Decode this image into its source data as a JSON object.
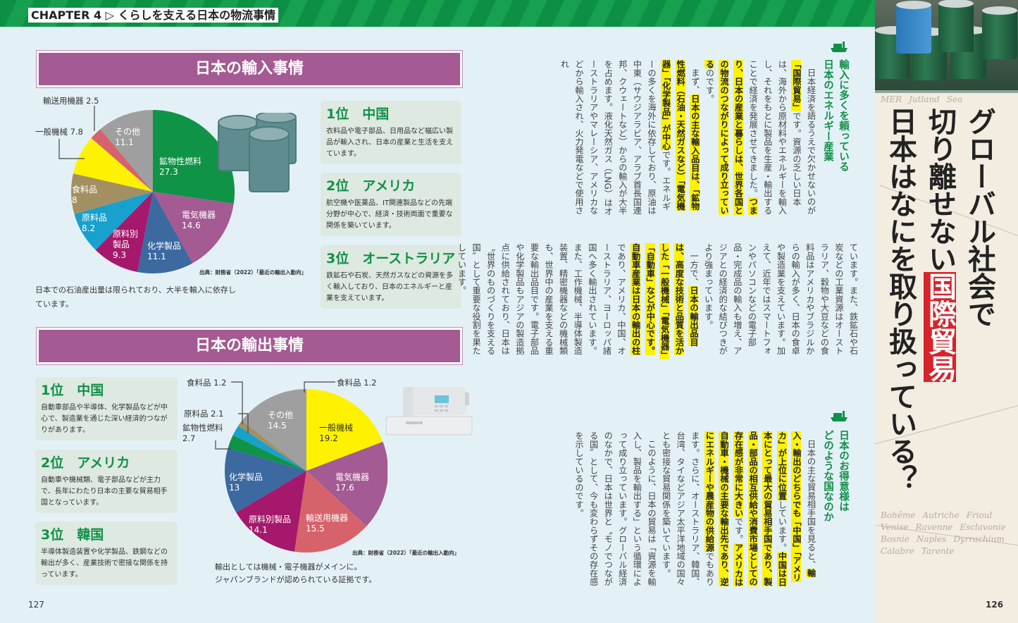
{
  "header": {
    "chapter": "CHAPTER 4 ▷ くらしを支える日本の物流事情"
  },
  "left_page": {
    "import_section": {
      "title": "日本の輸入事情",
      "source": "出典：財務省（2022）「最近の輸出入動向」",
      "caption": "日本での石油産出量は限られており、大半を輸入に依存しています。",
      "ranks": [
        {
          "title": "1位　中国",
          "body": "衣料品や電子部品、日用品など幅広い製品が輸入され、日本の産業と生活を支えています。"
        },
        {
          "title": "2位　アメリカ",
          "body": "航空機や医薬品、IT関連製品などの先端分野が中心で、経済・技術両面で重要な関係を築いています。"
        },
        {
          "title": "3位　オーストラリア",
          "body": "鉄鉱石や石炭、天然ガスなどの資源を多く輸入しており、日本のエネルギーと産業を支えています。"
        }
      ]
    },
    "export_section": {
      "title": "日本の輸出事情",
      "source": "出典：財務省（2022）「最近の輸出入動向」",
      "caption_lines": [
        "輸出としては機械・電子機器がメインに。",
        "ジャパンブランドが認められている証拠です。"
      ],
      "ranks": [
        {
          "title": "1位　中国",
          "body": "自動車部品や半導体、化学製品などが中心で、製造業を通じた深い経済的つながりがあります。"
        },
        {
          "title": "2位　アメリカ",
          "body": "自動車や機械類、電子部品などが主力で、長年にわたり日本の主要な貿易相手国となっています。"
        },
        {
          "title": "3位　韓国",
          "body": "半導体製造装置や化学製品、鉄鋼などの輸出が多く、産業技術で密接な関係を持っています。"
        }
      ]
    },
    "page_number": "127"
  },
  "chart_data": [
    {
      "type": "pie",
      "title": "日本の輸入事情",
      "start": "12 o'clock clockwise",
      "categories": [
        "鉱物性燃料",
        "電気機器",
        "化学製品",
        "原料別製品",
        "原料品",
        "食料品",
        "一般機械",
        "輸送用機器",
        "その他"
      ],
      "values": [
        27.3,
        14.6,
        11.1,
        9.3,
        8.2,
        8,
        7.8,
        2.5,
        11.1
      ],
      "value_labels": [
        "27.3",
        "14.6",
        "11.1",
        "9.3",
        "8.2",
        "8",
        "7.8",
        "2.5",
        "11.1"
      ],
      "inside_labels": [
        "鉱物性燃料",
        "電気機器",
        "化学製品",
        "原料別\n製品",
        "原料品",
        "食料品",
        "",
        "",
        "その他"
      ],
      "outside_labels": [
        "一般機械 7.8",
        "輸送用機器 2.5"
      ],
      "colors": [
        "#0f9346",
        "#a45a92",
        "#3b69a0",
        "#a6186b",
        "#17a1cc",
        "#a39062",
        "#fff200",
        "#d6636b",
        "#9f9f9f"
      ]
    },
    {
      "type": "pie",
      "title": "日本の輸出事情",
      "start": "12 o'clock clockwise",
      "categories": [
        "一般機械",
        "電気機器",
        "輸送用機器",
        "原料別製品",
        "化学製品",
        "鉱物性燃料",
        "原料品",
        "食料品",
        "その他"
      ],
      "values": [
        19.2,
        17.6,
        15.5,
        14.1,
        13,
        2.7,
        2.1,
        1.2,
        14.5
      ],
      "value_labels": [
        "19.2",
        "17.6",
        "15.5",
        "14.1",
        "13",
        "2.7",
        "2.1",
        "1.2",
        "14.5"
      ],
      "inside_labels": [
        "一般機械",
        "電気機器",
        "輸送用機器",
        "原料別製品",
        "化学製品",
        "",
        "",
        "",
        "その他"
      ],
      "outside_labels": [
        "食料品 1.2",
        "原料品 2.1",
        "鉱物性燃料",
        "2.7",
        "食料品 1.2"
      ],
      "colors": [
        "#fff200",
        "#a45a92",
        "#d6636b",
        "#a6186b",
        "#3b69a0",
        "#0f9346",
        "#17a1cc",
        "#a39062",
        "#9f9f9f"
      ]
    }
  ],
  "article": {
    "heading1": [
      "輸入に多くを頼っている",
      "日本のエネルギー産業"
    ],
    "heading2": [
      "日本のお得意様は",
      "どのような国なのか"
    ],
    "tiers": [
      [
        {
          "ind": true,
          "segs": [
            {
              "t": "日本経済を語るうえで欠かせないのが"
            },
            {
              "t": "「国際貿易」",
              "hl": true
            },
            {
              "t": "です。資源の乏しい日本は、海外から原材料やエネルギーを輸入し、それをもとに製品を生産・輸出することで経済を発展させてきました。"
            },
            {
              "t": "つまり、日本の産業と暮らしは、世界各国との物流のつながりによって成り立っている",
              "hl": true
            },
            {
              "t": "のです。"
            }
          ]
        },
        {
          "ind": true,
          "segs": [
            {
              "t": "まず、"
            },
            {
              "t": "日本の主な輸入品目は、「鉱物性燃料（石油・天然ガスなど）「電気機器」「化学製品」が中心",
              "hl": true
            },
            {
              "t": "です。エネルギーの多くを海外に依存しており、原油は中東（サウジアラビア、アラブ首長国連邦、クウェートなど）からの輸入が大半を占めます。液化天然ガス（LNG）はオーストラリアやマレーシア、アメリカなどから輸入され、火力発電などで使用され"
            }
          ]
        }
      ],
      [
        {
          "ind": false,
          "segs": [
            {
              "t": "ています。また、鉄鉱石や石炭などの工業資源はオーストラリア、穀物や大豆などの食料品はアメリカやブラジルからの輸入が多く、日本の食卓や製造業を支えています。加えて、近年ではスマートフォンやパソコンなどの電子部品・完成品の輸入も増え、アジアとの経済的な結びつきがより強まっています。"
            }
          ]
        },
        {
          "ind": true,
          "segs": [
            {
              "t": "一方で、"
            },
            {
              "t": "日本の輸出品目は、高度な技術と品質を活かした「一般機械」「電気機器」「自動車」などが中心です。自動車産業は日本の輸出の柱",
              "hl": true
            },
            {
              "t": "であり、アメリカ、中国、オーストラリア、ヨーロッパ諸国へ多く輸出されています。また、工作機械、半導体製造装置、精密機器などの機械類も、世界中の産業を支える重要な輸出品目です。電子部品や化学製品もアジアの製造拠点に供給されており、日本は〝世界のものづくりを支える国〟として重要な役割を果たしています。"
            }
          ]
        }
      ],
      [
        {
          "ind": true,
          "segs": [
            {
              "t": "日本の主な貿易相手国を見ると、"
            },
            {
              "t": "輸入・輸出のどちらでも「中国」「アメリカ」が上位に位置",
              "hl": true
            },
            {
              "t": "しています。"
            },
            {
              "t": "中国は日本にとって最大の貿易相手国であり、製品・部品の相互供給や消費市場としての存在感が非常に大きい",
              "hl": true
            },
            {
              "t": "です。"
            },
            {
              "t": "アメリカは自動車・機械の主要な輸出先であり、逆にエネルギーや農産物の供給源",
              "hl": true
            },
            {
              "t": "でもあります。さらに、オーストラリア、韓国、台湾、タイなどアジア太平洋地域の国々とも密接な貿易関係を築いています。"
            }
          ]
        },
        {
          "ind": true,
          "segs": [
            {
              "t": "このように、日本の貿易は「資源を輸入し、製品を輸出する」という循環によって成り立っています。グローバル経済のなかで、日本は世界と〝モノでつながる国〟として、今も変わらずその存在感を示しているのです。"
            }
          ]
        }
      ]
    ]
  },
  "title_panel": {
    "line1": "グローバル社会で",
    "line2_pre": "切り離せない",
    "line2_red": "国際貿易",
    "line3": "日本はなにを取り扱っている？",
    "page_number": "126",
    "map_words": [
      "MER",
      "Jutland",
      "Sea",
      "Bohême",
      "Autriche",
      "Frioul",
      "Venise",
      "Ravenne",
      "Esclavonie",
      "Bosnie",
      "Naples",
      "Dyrrachium",
      "Calabre",
      "Tarente"
    ]
  }
}
